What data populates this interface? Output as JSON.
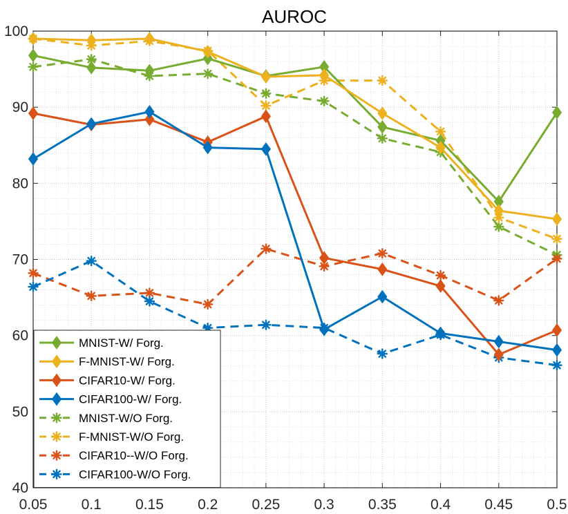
{
  "chart_data": {
    "type": "line",
    "title": "AUROC",
    "xlabel": "",
    "ylabel": "",
    "x": [
      0.05,
      0.1,
      0.15,
      0.2,
      0.25,
      0.3,
      0.35,
      0.4,
      0.45,
      0.5
    ],
    "x_tick_labels": [
      "0.05",
      "0.1",
      "0.15",
      "0.2",
      "0.25",
      "0.3",
      "0.35",
      "0.4",
      "0.45",
      "0.5"
    ],
    "xlim": [
      0.05,
      0.5
    ],
    "ylim": [
      40,
      100
    ],
    "y_ticks": [
      40,
      50,
      60,
      70,
      80,
      90,
      100
    ],
    "y_tick_labels": [
      "40",
      "50",
      "60",
      "70",
      "80",
      "90",
      "100"
    ],
    "grid": "major and minor, dotted",
    "legend_position": "bottom-left",
    "series": [
      {
        "name": "MNIST-W/ Forg.",
        "color": "#77AC30",
        "style": "solid",
        "marker": "diamond",
        "values": [
          96.8,
          95.2,
          94.8,
          96.4,
          94.1,
          95.3,
          87.4,
          85.6,
          77.6,
          89.3
        ]
      },
      {
        "name": "F-MNIST-W/ Forg.",
        "color": "#EDB120",
        "style": "solid",
        "marker": "diamond",
        "values": [
          99.0,
          98.8,
          99.0,
          97.3,
          94.0,
          94.2,
          89.2,
          84.7,
          76.4,
          75.3
        ]
      },
      {
        "name": "CIFAR10-W/ Forg.",
        "color": "#D95319",
        "style": "solid",
        "marker": "diamond",
        "values": [
          89.2,
          87.7,
          88.4,
          85.4,
          88.8,
          70.2,
          68.7,
          66.5,
          57.5,
          60.7
        ]
      },
      {
        "name": "CIFAR100-W/ Forg.",
        "color": "#0072BD",
        "style": "solid",
        "marker": "diamond",
        "values": [
          83.2,
          87.8,
          89.4,
          84.7,
          84.5,
          60.8,
          65.1,
          60.3,
          59.2,
          58.1
        ]
      },
      {
        "name": "MNIST-W/O Forg.",
        "color": "#77AC30",
        "style": "dashed",
        "marker": "asterisk",
        "values": [
          95.3,
          96.3,
          94.1,
          94.4,
          91.8,
          90.8,
          85.9,
          84.1,
          74.3,
          70.6
        ]
      },
      {
        "name": "F-MNIST-W/O Forg.",
        "color": "#EDB120",
        "style": "dashed",
        "marker": "asterisk",
        "values": [
          99.0,
          98.1,
          98.7,
          97.4,
          90.2,
          93.5,
          93.5,
          86.8,
          75.5,
          72.7
        ]
      },
      {
        "name": "CIFAR10--W/O Forg.",
        "color": "#D95319",
        "style": "dashed",
        "marker": "asterisk",
        "values": [
          68.2,
          65.2,
          65.6,
          64.1,
          71.4,
          69.1,
          70.8,
          67.9,
          64.6,
          70.1
        ]
      },
      {
        "name": "CIFAR100-W/O Forg.",
        "color": "#0072BD",
        "style": "dashed",
        "marker": "asterisk",
        "values": [
          66.4,
          69.8,
          64.5,
          61.0,
          61.4,
          61.0,
          57.6,
          60.1,
          57.1,
          56.1
        ]
      }
    ]
  }
}
